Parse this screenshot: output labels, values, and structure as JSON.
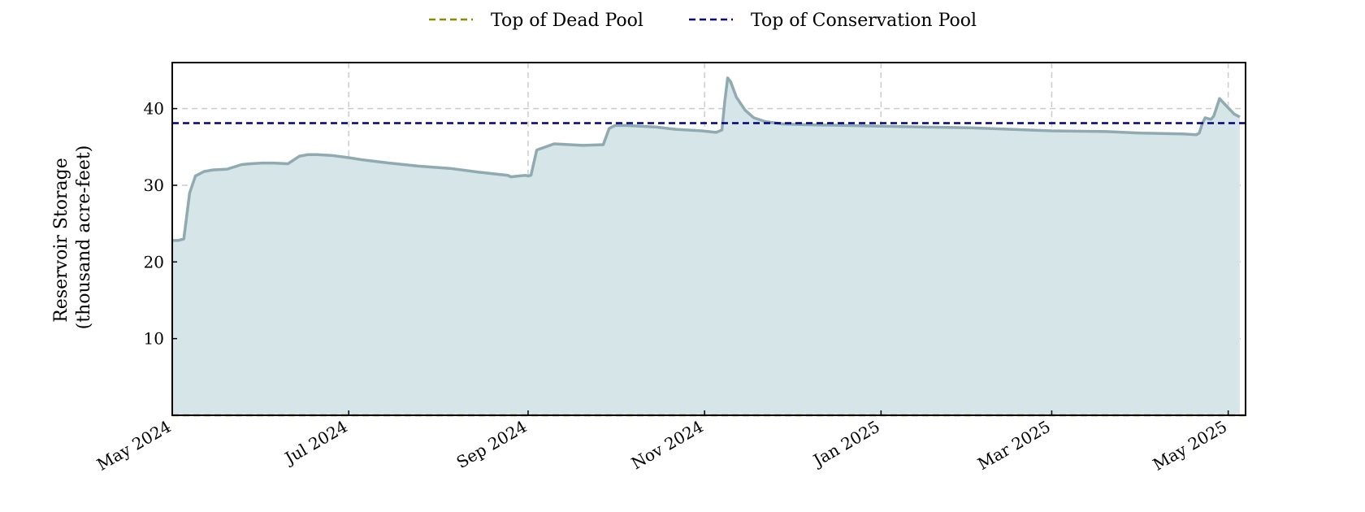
{
  "chart_data": {
    "type": "area",
    "title": "",
    "xlabel": "",
    "ylabel_lines": [
      "Reservoir Storage",
      "(thousand acre-feet)"
    ],
    "xlim": [
      "2024-05-01",
      "2025-05-07"
    ],
    "ylim": [
      0,
      46
    ],
    "yticks": [
      10,
      20,
      30,
      40
    ],
    "xticks": [
      {
        "date": "2024-05-01",
        "label": "May 2024"
      },
      {
        "date": "2024-07-01",
        "label": "Jul 2024"
      },
      {
        "date": "2024-09-01",
        "label": "Sep 2024"
      },
      {
        "date": "2024-11-01",
        "label": "Nov 2024"
      },
      {
        "date": "2025-01-01",
        "label": "Jan 2025"
      },
      {
        "date": "2025-03-01",
        "label": "Mar 2025"
      },
      {
        "date": "2025-05-01",
        "label": "May 2025"
      }
    ],
    "grid": true,
    "legend_position": "top-center",
    "colors": {
      "storage_line": "#8faab0",
      "storage_fill": "#d6e6e8",
      "dead_pool": "#8b8b00",
      "conservation_pool": "#000080",
      "grid": "#cccccc"
    },
    "reference_lines": [
      {
        "name": "Top of Dead Pool",
        "value": 0,
        "style": "dashed",
        "color": "#8b8b00"
      },
      {
        "name": "Top of Conservation Pool",
        "value": 38.1,
        "style": "dashed",
        "color": "#000080"
      }
    ],
    "series": [
      {
        "x": [
          "2024-05-01",
          "2024-05-03",
          "2024-05-04",
          "2024-05-05",
          "2024-05-07",
          "2024-05-09",
          "2024-05-12",
          "2024-05-15",
          "2024-05-20",
          "2024-05-25",
          "2024-05-28",
          "2024-06-01",
          "2024-06-05",
          "2024-06-10",
          "2024-06-14",
          "2024-06-17",
          "2024-06-20",
          "2024-06-25",
          "2024-07-01",
          "2024-07-06",
          "2024-07-15",
          "2024-07-25",
          "2024-08-05",
          "2024-08-15",
          "2024-08-25",
          "2024-08-26",
          "2024-08-31",
          "2024-09-01",
          "2024-09-02",
          "2024-09-04",
          "2024-09-10",
          "2024-09-20",
          "2024-09-27",
          "2024-09-29",
          "2024-10-01",
          "2024-10-05",
          "2024-10-15",
          "2024-10-22",
          "2024-10-31",
          "2024-11-05",
          "2024-11-07",
          "2024-11-08",
          "2024-11-09",
          "2024-11-10",
          "2024-11-12",
          "2024-11-15",
          "2024-11-18",
          "2024-11-22",
          "2024-11-28",
          "2024-12-05",
          "2024-12-20",
          "2025-01-01",
          "2025-01-15",
          "2025-02-01",
          "2025-02-15",
          "2025-03-01",
          "2025-03-20",
          "2025-04-01",
          "2025-04-15",
          "2025-04-20",
          "2025-04-21",
          "2025-04-22",
          "2025-04-23",
          "2025-04-24",
          "2025-04-25",
          "2025-04-26",
          "2025-04-28",
          "2025-04-30",
          "2025-05-03",
          "2025-05-05"
        ],
        "y": [
          22.8,
          22.8,
          22.9,
          23.0,
          29.0,
          31.2,
          31.8,
          32.0,
          32.1,
          32.7,
          32.8,
          32.9,
          32.9,
          32.8,
          33.8,
          34.0,
          34.0,
          33.9,
          33.6,
          33.3,
          32.9,
          32.5,
          32.2,
          31.7,
          31.3,
          31.1,
          31.3,
          31.2,
          31.3,
          34.6,
          35.4,
          35.2,
          35.3,
          37.4,
          37.8,
          37.8,
          37.6,
          37.3,
          37.1,
          36.9,
          37.2,
          41.0,
          44.0,
          43.5,
          41.5,
          39.8,
          38.8,
          38.3,
          38.0,
          37.9,
          37.8,
          37.7,
          37.6,
          37.5,
          37.3,
          37.1,
          37.0,
          36.8,
          36.7,
          36.6,
          36.8,
          38.0,
          38.8,
          38.7,
          38.6,
          39.0,
          41.3,
          40.5,
          39.3,
          38.9
        ]
      }
    ]
  }
}
